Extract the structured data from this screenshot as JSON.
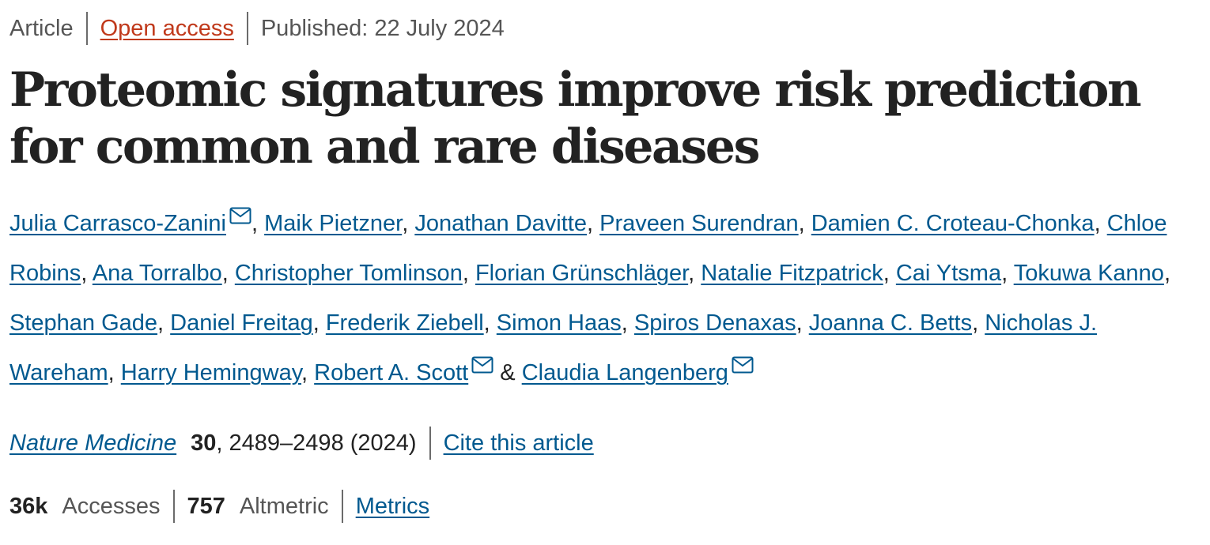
{
  "header": {
    "article_type": "Article",
    "access": "Open access",
    "published": "Published: 22 July 2024"
  },
  "title": "Proteomic signatures improve risk prediction for common and rare diseases",
  "authors": [
    {
      "name": "Julia Carrasco-Zanini",
      "email_icon": true
    },
    {
      "name": "Maik Pietzner",
      "email_icon": false
    },
    {
      "name": "Jonathan Davitte",
      "email_icon": false
    },
    {
      "name": "Praveen Surendran",
      "email_icon": false
    },
    {
      "name": "Damien C. Croteau-Chonka",
      "email_icon": false
    },
    {
      "name": "Chloe Robins",
      "email_icon": false
    },
    {
      "name": "Ana Torralbo",
      "email_icon": false
    },
    {
      "name": "Christopher Tomlinson",
      "email_icon": false
    },
    {
      "name": "Florian Grünschläger",
      "email_icon": false
    },
    {
      "name": "Natalie Fitzpatrick",
      "email_icon": false
    },
    {
      "name": "Cai Ytsma",
      "email_icon": false
    },
    {
      "name": "Tokuwa Kanno",
      "email_icon": false
    },
    {
      "name": "Stephan Gade",
      "email_icon": false
    },
    {
      "name": "Daniel Freitag",
      "email_icon": false
    },
    {
      "name": "Frederik Ziebell",
      "email_icon": false
    },
    {
      "name": "Simon Haas",
      "email_icon": false
    },
    {
      "name": "Spiros Denaxas",
      "email_icon": false
    },
    {
      "name": "Joanna C. Betts",
      "email_icon": false
    },
    {
      "name": "Nicholas J. Wareham",
      "email_icon": false
    },
    {
      "name": "Harry Hemingway",
      "email_icon": false
    },
    {
      "name": "Robert A. Scott",
      "email_icon": true
    },
    {
      "name": "Claudia Langenberg",
      "email_icon": true
    }
  ],
  "author_separator": ", ",
  "author_last_separator": " & ",
  "citation": {
    "journal": "Nature Medicine",
    "volume": "30",
    "pages": ", 2489–2498 (2024)",
    "cite_link": "Cite this article"
  },
  "metrics": {
    "accesses_count": "36k",
    "accesses_label": "Accesses",
    "altmetric_count": "757",
    "altmetric_label": "Altmetric",
    "metrics_link": "Metrics"
  },
  "colors": {
    "link": "#01598f",
    "open_access": "#c0391b",
    "text": "#222222",
    "muted": "#555555"
  },
  "icons": {
    "email": "envelope-icon"
  }
}
